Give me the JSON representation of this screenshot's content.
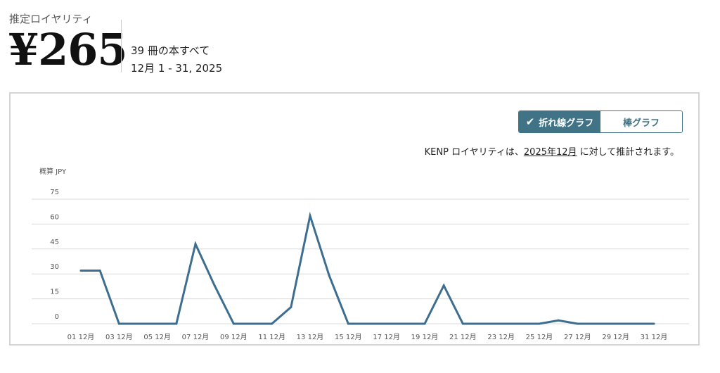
{
  "header": {
    "label": "推定ロイヤリティ",
    "amount": "¥265",
    "books": "39 冊の本すべて",
    "range": "12月 1 - 31, 2025"
  },
  "toggle": {
    "line_label": "折れ線グラフ",
    "bar_label": "棒グラフ",
    "selected": "line",
    "check_icon": "checkmark-icon"
  },
  "note": {
    "prefix": "KENP ロイヤリティは、",
    "link": "2025年12月",
    "suffix": " に対して推計されます。"
  },
  "colors": {
    "accent": "#3f7385",
    "line": "#3d6e8f"
  },
  "chart_data": {
    "type": "line",
    "ylabel": "概算 JPY",
    "ylim": [
      0,
      75
    ],
    "yticks": [
      0,
      15,
      30,
      45,
      60,
      75
    ],
    "grid": true,
    "x": [
      1,
      2,
      3,
      4,
      5,
      6,
      7,
      8,
      9,
      10,
      11,
      12,
      13,
      14,
      15,
      16,
      17,
      18,
      19,
      20,
      21,
      22,
      23,
      24,
      25,
      26,
      27,
      28,
      29,
      30,
      31
    ],
    "values": [
      32,
      32,
      0,
      0,
      0,
      0,
      48,
      23,
      0,
      0,
      0,
      10,
      65,
      29,
      0,
      0,
      0,
      0,
      0,
      23,
      0,
      0,
      0,
      0,
      0,
      2,
      0,
      0,
      0,
      0,
      0
    ],
    "xtick_labels": [
      "01 12月",
      "03 12月",
      "05 12月",
      "07 12月",
      "09 12月",
      "11 12月",
      "13 12月",
      "15 12月",
      "17 12月",
      "19 12月",
      "21 12月",
      "23 12月",
      "25 12月",
      "27 12月",
      "29 12月",
      "31 12月"
    ]
  }
}
